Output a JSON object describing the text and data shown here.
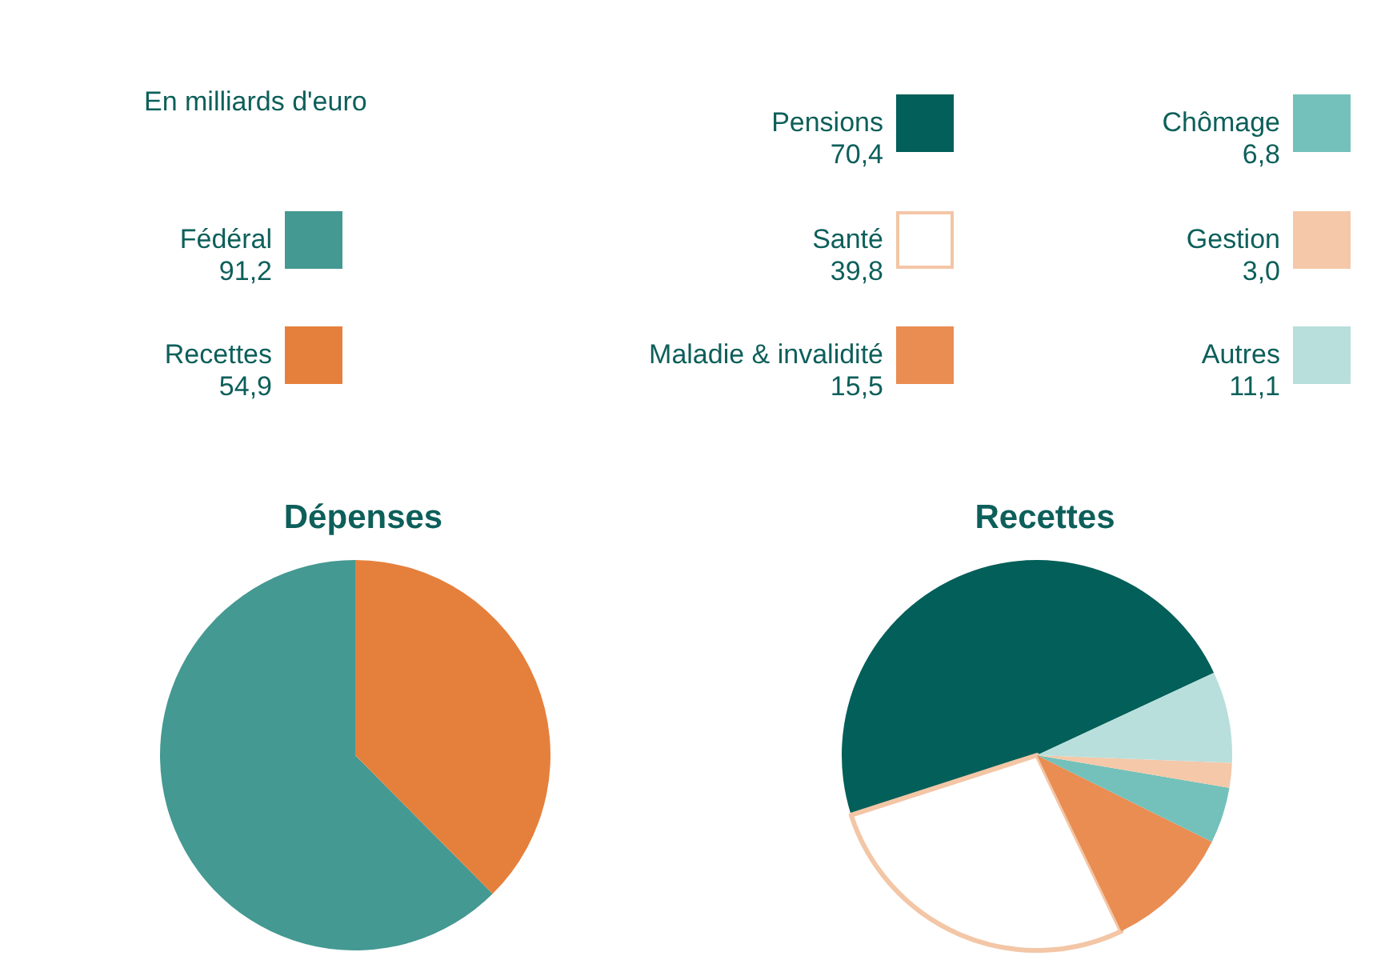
{
  "chart_data": [
    {
      "type": "pie",
      "title": "Dépenses",
      "annotations": [
        "En milliards d'euro"
      ],
      "categories": [
        "Fédéral",
        "Recettes"
      ],
      "values": [
        91.2,
        54.9
      ],
      "value_labels": [
        "91,2",
        "54,9"
      ],
      "colors": [
        "#449992",
        "#e5803c"
      ],
      "legend": "top"
    },
    {
      "type": "pie",
      "title": "Recettes",
      "categories": [
        "Pensions",
        "Santé",
        "Maladie & invalidité",
        "Chômage",
        "Gestion",
        "Autres"
      ],
      "values": [
        70.4,
        39.8,
        15.5,
        6.8,
        3.0,
        11.1
      ],
      "value_labels": [
        "70,4",
        "39,8",
        "15,5",
        "6,8",
        "3,0",
        "11,1"
      ],
      "colors": [
        "#025f59",
        "#ffffff",
        "#e98d52",
        "#73c1ba",
        "#f4c8a9",
        "#b8dfdb"
      ],
      "legend": "top"
    }
  ]
}
